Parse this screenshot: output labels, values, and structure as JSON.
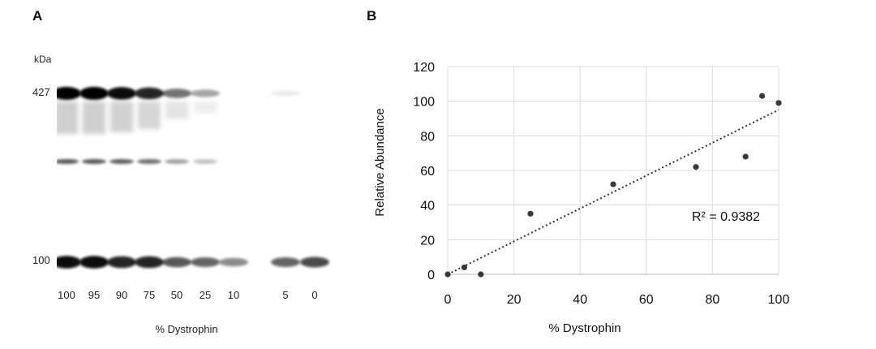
{
  "panels": {
    "a_label": "A",
    "b_label": "B"
  },
  "blot": {
    "unit_label": "kDa",
    "marker_427": "427",
    "marker_100": "100",
    "x_label": "% Dystrophin",
    "lanes": [
      "100",
      "95",
      "90",
      "75",
      "50",
      "25",
      "10",
      "5",
      "0"
    ],
    "dystrophin_band_intensity": [
      1.0,
      1.0,
      0.95,
      0.85,
      0.55,
      0.35,
      0.0,
      0.08,
      0.0
    ],
    "loading_band_intensity": [
      0.95,
      0.95,
      0.85,
      0.85,
      0.65,
      0.6,
      0.45,
      0.6,
      0.7
    ]
  },
  "chart_data": {
    "type": "scatter",
    "title": "",
    "xlabel": "% Dystrophin",
    "ylabel": "Relative Abundance",
    "xlim": [
      0,
      100
    ],
    "ylim": [
      0,
      120
    ],
    "xticks": [
      "0",
      "20",
      "40",
      "60",
      "80",
      "100"
    ],
    "yticks": [
      "0",
      "20",
      "40",
      "60",
      "80",
      "100",
      "120"
    ],
    "grid": true,
    "series": [
      {
        "name": "Relative Abundance",
        "x": [
          0,
          5,
          10,
          25,
          50,
          75,
          90,
          95,
          100
        ],
        "y": [
          0,
          4,
          0,
          35,
          52,
          62,
          68,
          103,
          99
        ]
      }
    ],
    "trendline": {
      "type": "linear",
      "style": "dotted",
      "x": [
        0,
        100
      ],
      "y": [
        0,
        95
      ]
    },
    "annotation": "R² = 0.9382"
  }
}
